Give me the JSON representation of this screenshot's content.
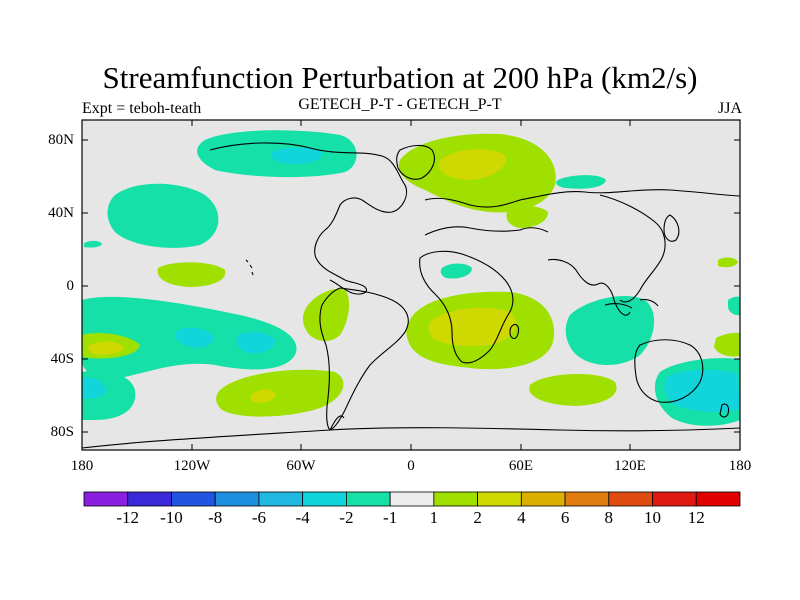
{
  "title": "Streamfunction Perturbation at 200 hPa (km2/s)",
  "subtitle_left": "Expt = teboh-teath",
  "subtitle_center": "GETECH_P-T - GETECH_P-T",
  "subtitle_right": "JJA",
  "y_axis": {
    "ticks": [
      "80N",
      "40N",
      "0",
      "40S",
      "80S"
    ]
  },
  "x_axis": {
    "ticks": [
      "180",
      "120W",
      "60W",
      "0",
      "60E",
      "120E",
      "180"
    ]
  },
  "colorbar": {
    "labels": [
      "-12",
      "-10",
      "-8",
      "-6",
      "-4",
      "-2",
      "-1",
      "1",
      "2",
      "4",
      "6",
      "8",
      "10",
      "12"
    ],
    "colors": [
      "#8a1fe0",
      "#3b28d8",
      "#1f55e0",
      "#1d8ee0",
      "#20b7e0",
      "#10d6dc",
      "#14e0a8",
      "#ececec",
      "#a0e000",
      "#cfd800",
      "#dcb000",
      "#e07c10",
      "#e04c10",
      "#e01a10",
      "#e00000"
    ]
  },
  "map_colors": {
    "background": "#e6e6e6",
    "neg1": "#14e0a8",
    "neg2": "#10d6dc",
    "pos1": "#a0e000",
    "pos2": "#cfd800",
    "coast": "#000000"
  }
}
